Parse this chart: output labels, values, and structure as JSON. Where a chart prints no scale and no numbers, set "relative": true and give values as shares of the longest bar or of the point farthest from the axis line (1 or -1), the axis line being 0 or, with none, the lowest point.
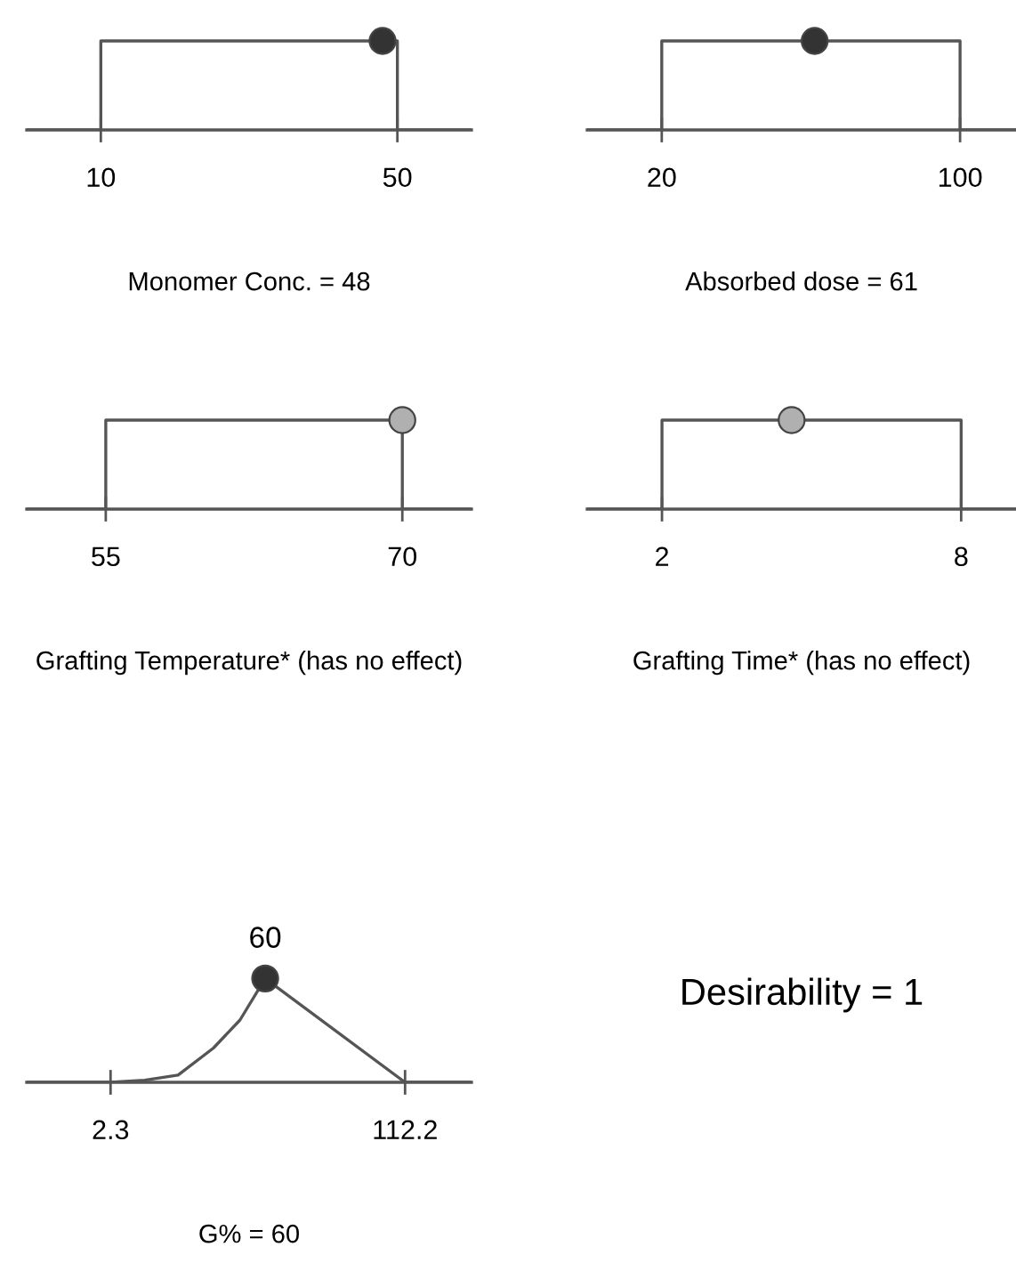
{
  "chart_data": [
    {
      "type": "line",
      "relative": true,
      "xlabel": "Monomer Conc. = 48",
      "xlim": [
        0,
        60
      ],
      "xticks": [
        10,
        50
      ],
      "marker": "none",
      "series": [
        {
          "type": "line",
          "color": "#555555",
          "x": [
            0,
            10,
            10,
            50,
            50,
            60
          ],
          "values": [
            0,
            0,
            1,
            1,
            0,
            0
          ]
        },
        {
          "type": "scatter",
          "color": "#333333",
          "x": [
            48
          ],
          "values": [
            1
          ],
          "marker": "circle"
        }
      ]
    },
    {
      "type": "line",
      "relative": true,
      "xlabel": "Absorbed dose = 61",
      "xlim": [
        0,
        115
      ],
      "xticks": [
        20,
        100
      ],
      "marker": "none",
      "series": [
        {
          "type": "line",
          "color": "#555555",
          "x": [
            0,
            20,
            20,
            100,
            100,
            115
          ],
          "values": [
            0,
            0,
            1,
            1,
            0,
            0
          ]
        },
        {
          "type": "scatter",
          "color": "#333333",
          "x": [
            61
          ],
          "values": [
            1
          ],
          "marker": "circle"
        }
      ]
    },
    {
      "type": "line",
      "relative": true,
      "xlabel": "Grafting Temperature* (has no effect)",
      "xlim": [
        51,
        73.5
      ],
      "xticks": [
        55,
        70
      ],
      "marker": "none",
      "series": [
        {
          "type": "line",
          "color": "#555555",
          "x": [
            51,
            55,
            55,
            70,
            70,
            73.5
          ],
          "values": [
            0,
            0,
            1,
            1,
            0,
            0
          ]
        },
        {
          "type": "scatter",
          "color": "#b0b0b0",
          "x": [
            70
          ],
          "values": [
            1
          ],
          "marker": "circle"
        }
      ]
    },
    {
      "type": "line",
      "relative": true,
      "xlabel": "Grafting Time* (has no effect)",
      "xlim": [
        0.5,
        9.1
      ],
      "xticks": [
        2,
        8
      ],
      "marker": "none",
      "series": [
        {
          "type": "line",
          "color": "#555555",
          "x": [
            0.5,
            2,
            2,
            8,
            8,
            9.1
          ],
          "values": [
            0,
            0,
            1,
            1,
            0,
            0
          ]
        },
        {
          "type": "scatter",
          "color": "#b0b0b0",
          "x": [
            4.6
          ],
          "values": [
            1
          ],
          "marker": "circle"
        }
      ]
    },
    {
      "type": "line",
      "relative": true,
      "xlabel": "G% = 60",
      "xlim": [
        -29,
        137
      ],
      "xticks": [
        2.3,
        112.2
      ],
      "marker": "none",
      "annotations": [
        {
          "text": "60",
          "x": 60,
          "y": 1
        }
      ],
      "series": [
        {
          "type": "line",
          "color": "#555555",
          "x": [
            -29,
            2.3,
            15,
            27.5,
            40.7,
            50.6,
            60,
            112.2,
            137
          ],
          "values": [
            0,
            0,
            0.02,
            0.07,
            0.33,
            0.6,
            1,
            0,
            0
          ]
        },
        {
          "type": "scatter",
          "color": "#333333",
          "x": [
            60
          ],
          "values": [
            1
          ],
          "marker": "circle"
        }
      ]
    },
    {
      "type": "other",
      "title": "Desirability = 1"
    }
  ]
}
